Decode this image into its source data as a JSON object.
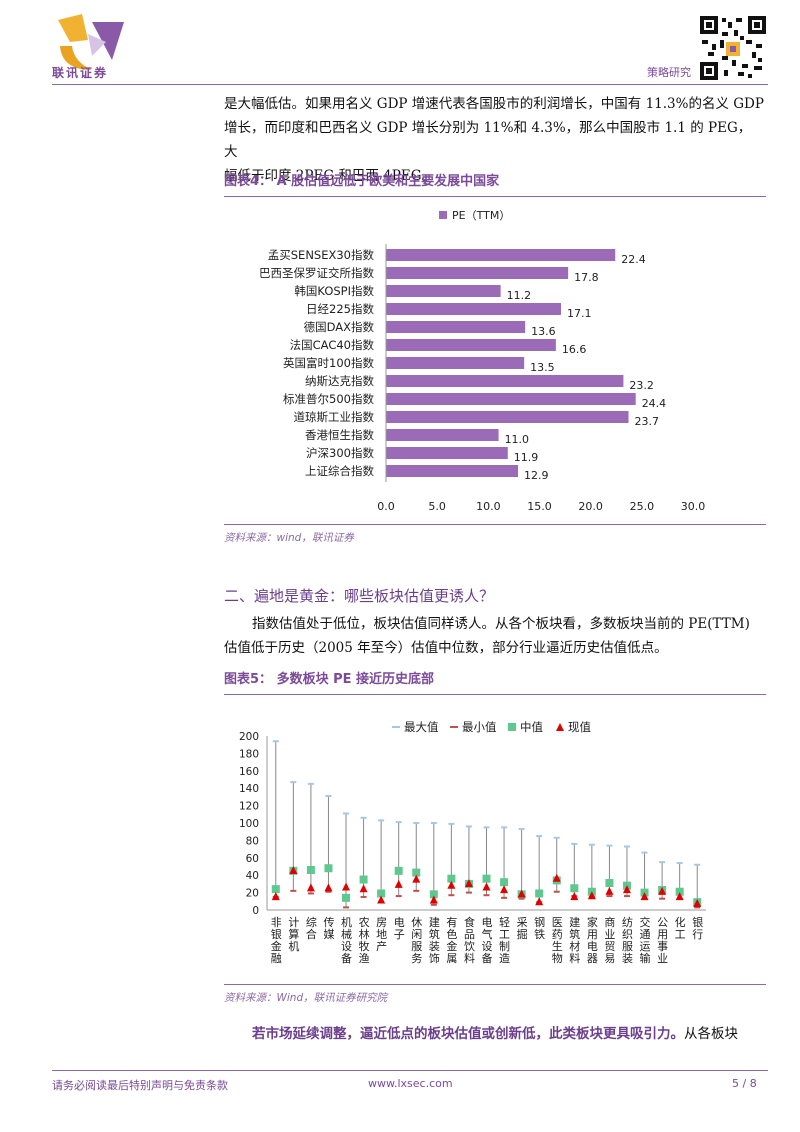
{
  "header": {
    "logo_text": "联讯证券",
    "report_type": "策略研究"
  },
  "body": {
    "para1_line1": "是大幅低估。如果用名义 GDP 增速代表各国股市的利润增长，中国有 11.3%的名义 GDP",
    "para1_line2": "增长，而印度和巴西名义 GDP 增长分别为 11%和 4.3%，那么中国股市 1.1 的 PEG，大",
    "para1_line3": "幅低于印度 2PEG 和巴西 4PEG。",
    "fig4_title": "图表4：   A 股估值远低于欧美和主要发展中国家",
    "fig4_source": "资料来源：wind，联讯证券",
    "section2_title": "二、遍地是黄金：哪些板块估值更诱人？",
    "para2_line1": "指数估值处于低位，板块估值同样诱人。从各个板块看，多数板块当前的 PE(TTM)",
    "para2_line2": "估值低于历史（2005 年至今）估值中位数，部分行业逼近历史估值低点。",
    "fig5_title": "图表5：   多数板块 PE 接近历史底部",
    "fig5_source": "资料来源：Wind，联讯证券研究院",
    "para3_emph": "若市场延续调整，逼近低点的板块估值或创新低，此类板块更具吸引力。",
    "para3_rest": "从各板块"
  },
  "footer": {
    "disclaimer": "请务必阅读最后特别声明与免责条款",
    "website": "www.lxsec.com",
    "page": "5 / 8"
  },
  "chart_data": [
    {
      "type": "bar",
      "orientation": "horizontal",
      "legend": "PE（TTM）",
      "legend_position": "top",
      "categories": [
        "孟买SENSEX30指数",
        "巴西圣保罗证交所指数",
        "韩国KOSPI指数",
        "日经225指数",
        "德国DAX指数",
        "法国CAC40指数",
        "英国富时100指数",
        "纳斯达克指数",
        "标准普尔500指数",
        "道琼斯工业指数",
        "香港恒生指数",
        "沪深300指数",
        "上证综合指数"
      ],
      "values": [
        22.4,
        17.8,
        11.2,
        17.1,
        13.6,
        16.6,
        13.5,
        23.2,
        24.4,
        23.7,
        11.0,
        11.9,
        12.9
      ],
      "value_labels": [
        "22.4",
        "17.8",
        "11.2",
        "17.1",
        "13.6",
        "16.6",
        "13.5",
        "23.2",
        "24.4",
        "23.7",
        "11.0",
        "11.9",
        "12.9"
      ],
      "xlim": [
        0,
        30
      ],
      "xticks": [
        "0.0",
        "5.0",
        "10.0",
        "15.0",
        "20.0",
        "25.0",
        "30.0"
      ],
      "colors": {
        "bar": "#9b6bb8"
      }
    },
    {
      "type": "range",
      "legend": [
        "最大值",
        "最小值",
        "中值",
        "现值"
      ],
      "legend_position": "top",
      "categories": [
        "非银金融",
        "计算机",
        "综合",
        "传媒",
        "机械设备",
        "农林牧渔",
        "房地产",
        "电子",
        "休闲服务",
        "建筑装饰",
        "有色金属",
        "食品饮料",
        "电气设备",
        "轻工制造",
        "采掘",
        "钢铁",
        "医药生物",
        "建筑材料",
        "家用电器",
        "商业贸易",
        "纺织服装",
        "交通运输",
        "公用事业",
        "化工",
        "银行"
      ],
      "max": [
        194,
        147,
        145,
        131,
        111,
        106,
        103,
        101,
        100,
        100,
        99,
        96,
        95,
        95,
        93,
        85,
        83,
        76,
        75,
        74,
        73,
        66,
        55,
        54,
        52
      ],
      "min": [
        15,
        22,
        19,
        21,
        3,
        15,
        9,
        16,
        22,
        6,
        17,
        20,
        17,
        14,
        13,
        9,
        21,
        16,
        15,
        16,
        16,
        13,
        13,
        13,
        3
      ],
      "median": [
        24,
        45,
        46,
        48,
        14,
        35,
        19,
        45,
        43,
        18,
        36,
        30,
        36,
        32,
        18,
        19,
        34,
        25,
        21,
        31,
        28,
        20,
        23,
        21,
        9
      ],
      "current": [
        16,
        46,
        26,
        26,
        27,
        25,
        12,
        30,
        36,
        12,
        29,
        31,
        27,
        24,
        19,
        10,
        37,
        16,
        17,
        22,
        24,
        16,
        22,
        16,
        8
      ],
      "ylim": [
        0,
        200
      ],
      "yticks": [
        "0",
        "20",
        "40",
        "60",
        "80",
        "100",
        "120",
        "140",
        "160",
        "180",
        "200"
      ],
      "colors": {
        "max": "#a6c8e0",
        "min": "#c0504d",
        "median": "#5fc88f",
        "current": "#e00000",
        "whisker": "#888888"
      }
    }
  ]
}
